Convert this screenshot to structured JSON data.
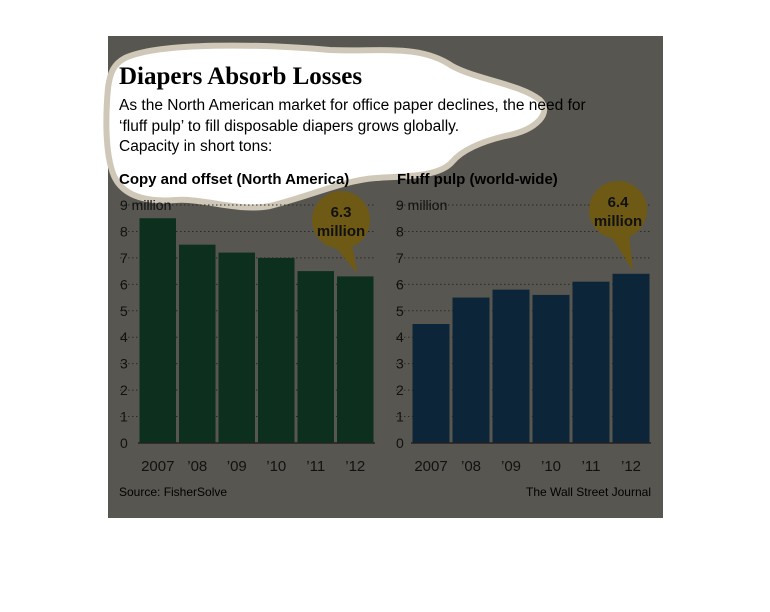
{
  "title": "Diapers Absorb Losses",
  "subtitle_lines": [
    "As the North American market for office paper declines, the need for",
    "‘fluff pulp’ to fill disposable diapers grows globally.",
    "Capacity in short tons:"
  ],
  "source": "Source: FisherSolve",
  "credit": "The Wall Street Journal",
  "colors": {
    "background": "#585650",
    "highlight": "#ffffff",
    "highlight_edge": "#cfc8b8",
    "left_bars": "#0d2f1e",
    "right_bars": "#0d2538",
    "callout": "#6e5a14",
    "axis_text": "#111111",
    "gridline": "#2a2a2a"
  },
  "chart_data": [
    {
      "type": "bar",
      "title": "Copy and offset (North America)",
      "categories": [
        "2007",
        "’08",
        "’09",
        "’10",
        "’11",
        "’12"
      ],
      "values": [
        8.5,
        7.5,
        7.2,
        7.0,
        6.5,
        6.3
      ],
      "ylim": [
        0,
        9
      ],
      "yticks": [
        "0",
        "1",
        "2",
        "3",
        "4",
        "5",
        "6",
        "7",
        "8",
        "9 million"
      ],
      "grid": true,
      "callout": {
        "category_index": 5,
        "lines": [
          "6.3",
          "million"
        ]
      }
    },
    {
      "type": "bar",
      "title": "Fluff pulp (world-wide)",
      "categories": [
        "2007",
        "’08",
        "’09",
        "’10",
        "’11",
        "’12"
      ],
      "values": [
        4.5,
        5.5,
        5.8,
        5.6,
        6.1,
        6.4
      ],
      "ylim": [
        0,
        9
      ],
      "yticks": [
        "0",
        "1",
        "2",
        "3",
        "4",
        "5",
        "6",
        "7",
        "8",
        "9 million"
      ],
      "grid": true,
      "callout": {
        "category_index": 5,
        "lines": [
          "6.4",
          "million"
        ]
      }
    }
  ]
}
